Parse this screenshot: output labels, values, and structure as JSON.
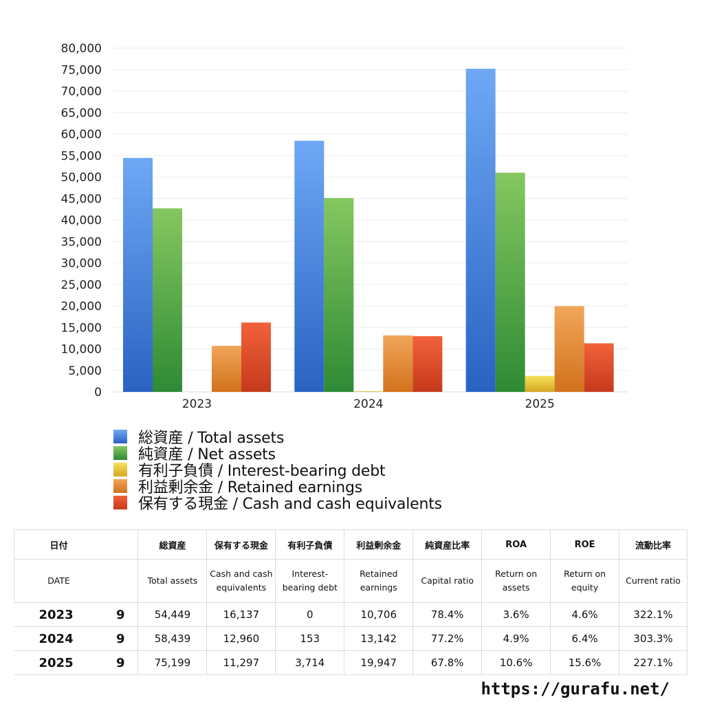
{
  "chart_data": {
    "type": "bar",
    "categories": [
      "2023",
      "2024",
      "2025"
    ],
    "series": [
      {
        "name": "総資産 / Total assets",
        "values": [
          54449,
          58439,
          75199
        ],
        "color_top": "#6ea8f5",
        "color_bottom": "#2a62c2"
      },
      {
        "name": "純資産 / Net assets",
        "values": [
          42700,
          45100,
          51000
        ],
        "color_top": "#85c760",
        "color_bottom": "#2e8a35"
      },
      {
        "name": "有利子負債 / Interest-bearing debt",
        "values": [
          0,
          153,
          3714
        ],
        "color_top": "#f6e25a",
        "color_bottom": "#d4a722"
      },
      {
        "name": "利益剰余金 / Retained earnings",
        "values": [
          10706,
          13142,
          19947
        ],
        "color_top": "#f1a659",
        "color_bottom": "#d2711c"
      },
      {
        "name": "保有する現金 /  Cash and cash equivalents",
        "values": [
          16137,
          12960,
          11297
        ],
        "color_top": "#f2613a",
        "color_bottom": "#c53a1c"
      }
    ],
    "ylim": [
      0,
      80000
    ],
    "yticks": [
      "0",
      "5,000",
      "10,000",
      "15,000",
      "20,000",
      "25,000",
      "30,000",
      "35,000",
      "40,000",
      "45,000",
      "50,000",
      "55,000",
      "60,000",
      "65,000",
      "70,000",
      "75,000",
      "80,000"
    ],
    "grid": true,
    "legend_position": "bottom"
  },
  "table": {
    "header_jp": [
      "日付",
      "総資産",
      "保有する現金",
      "有利子負債",
      "利益剰余金",
      "純資産比率",
      "ROA",
      "ROE",
      "流動比率"
    ],
    "header_en": [
      "DATE",
      "Total assets",
      "Cash and cash equivalents",
      "Interest-bearing debt",
      "Retained earnings",
      "Capital ratio",
      "Return on assets",
      "Return on equity",
      "Current ratio"
    ],
    "rows": [
      {
        "year": "2023",
        "month": "9",
        "cells": [
          "54,449",
          "16,137",
          "0",
          "10,706",
          "78.4%",
          "3.6%",
          "4.6%",
          "322.1%"
        ]
      },
      {
        "year": "2024",
        "month": "9",
        "cells": [
          "58,439",
          "12,960",
          "153",
          "13,142",
          "77.2%",
          "4.9%",
          "6.4%",
          "303.3%"
        ]
      },
      {
        "year": "2025",
        "month": "9",
        "cells": [
          "75,199",
          "11,297",
          "3,714",
          "19,947",
          "67.8%",
          "10.6%",
          "15.6%",
          "227.1%"
        ]
      }
    ]
  },
  "footer": {
    "url": "https://gurafu.net/"
  }
}
